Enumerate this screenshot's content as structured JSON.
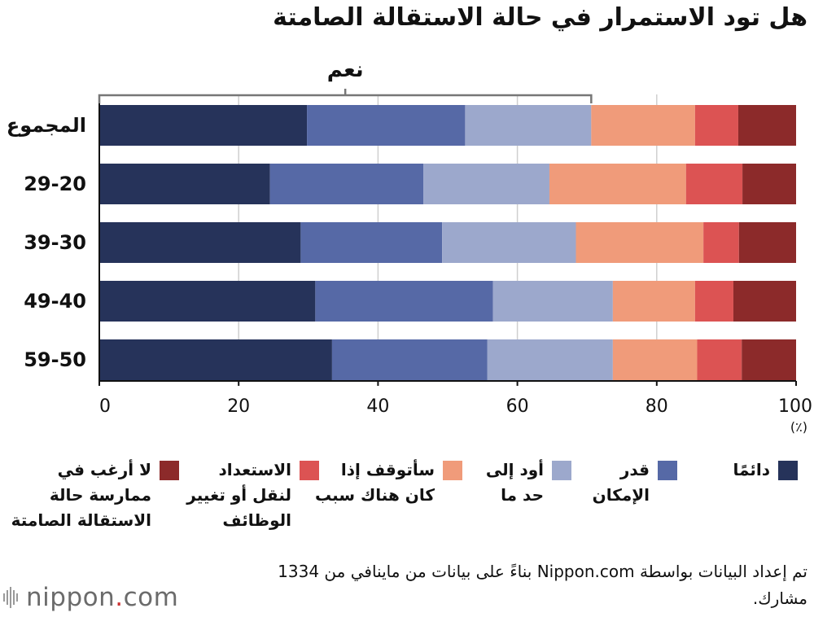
{
  "title": "هل تود الاستمرار في حالة الاستقالة الصامتة",
  "bracket_label": "نعم",
  "unit_label": "(٪)",
  "chart_data": {
    "type": "bar",
    "orientation": "horizontal",
    "stacked": true,
    "title": "هل تود الاستمرار في حالة الاستقالة الصامتة",
    "categories": [
      "المجموع",
      "29-20",
      "39-30",
      "49-40",
      "59-50"
    ],
    "xlim": [
      0,
      100
    ],
    "xticks": [
      "0",
      "20",
      "40",
      "60",
      "80",
      "100"
    ],
    "grid": true,
    "series": [
      {
        "name": "دائمًا",
        "color": "#26335a",
        "values": [
          29.8,
          24.5,
          28.9,
          31.0,
          33.4
        ]
      },
      {
        "name": "قدر الإمكان",
        "color": "#5669a6",
        "values": [
          22.7,
          22.0,
          20.3,
          25.5,
          22.3
        ]
      },
      {
        "name": "أود إلى حد ما",
        "color": "#9ca8cc",
        "values": [
          18.1,
          18.1,
          19.2,
          17.2,
          18.0
        ]
      },
      {
        "name": "سأتوقف إذا كان هناك سبب",
        "color": "#f09b7a",
        "values": [
          14.9,
          19.6,
          18.3,
          11.8,
          12.1
        ]
      },
      {
        "name": "الاستعداد لنقل أو تغيير الوظائف",
        "color": "#dc5353",
        "values": [
          6.2,
          8.1,
          5.1,
          5.5,
          6.4
        ]
      },
      {
        "name": "لا أرغب في ممارسة حالة الاستقالة الصامتة",
        "color": "#8c2a2a",
        "values": [
          8.3,
          7.7,
          8.2,
          9.0,
          7.8
        ]
      }
    ]
  },
  "legend": [
    {
      "label": "دائمًا",
      "color": "#26335a"
    },
    {
      "label": "قدر\nالإمكان",
      "color": "#5669a6"
    },
    {
      "label": "أود إلى\nحد ما",
      "color": "#9ca8cc"
    },
    {
      "label": "سأتوقف إذا\nكان هناك سبب",
      "color": "#f09b7a"
    },
    {
      "label": "الاستعداد\nلنقل أو تغيير\nالوظائف",
      "color": "#dc5353"
    },
    {
      "label": "لا أرغب في\nممارسة حالة\nالاستقالة الصامتة",
      "color": "#8c2a2a"
    }
  ],
  "source": "تم إعداد البيانات بواسطة Nippon.com بناءً على بيانات من ماينافي من 1334 مشارك.",
  "logo": {
    "text": "nippon",
    "dot": ".",
    "suffix": "com"
  }
}
